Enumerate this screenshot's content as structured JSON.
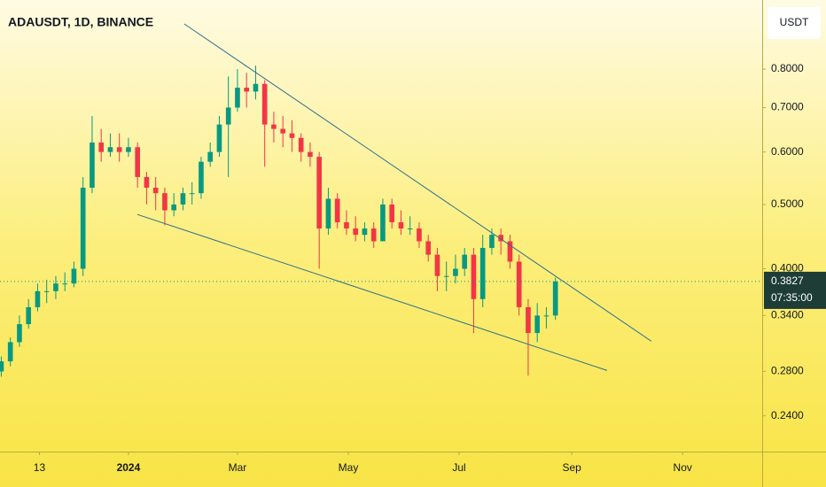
{
  "chart_data": {
    "type": "candlestick",
    "title": "ADAUSDT, 1D, BINANCE",
    "currency_button": "USDT",
    "log_scale": true,
    "xlim": [
      -70.7,
      348.8
    ],
    "xticks": [
      {
        "value": -49,
        "label": "13"
      },
      {
        "value": 0,
        "label": "2024"
      },
      {
        "value": 60,
        "label": "Mar"
      },
      {
        "value": 121,
        "label": "May"
      },
      {
        "value": 182,
        "label": "Jul"
      },
      {
        "value": 244,
        "label": "Sep"
      },
      {
        "value": 305,
        "label": "Nov"
      }
    ],
    "ylim": [
      0.212,
      1.017
    ],
    "yticks": [
      {
        "value": 0.24,
        "label": "0.2400"
      },
      {
        "value": 0.28,
        "label": "0.2800"
      },
      {
        "value": 0.34,
        "label": "0.3400"
      },
      {
        "value": 0.4,
        "label": "0.4000"
      },
      {
        "value": 0.5,
        "label": "0.5000"
      },
      {
        "value": 0.6,
        "label": "0.6000"
      },
      {
        "value": 0.7,
        "label": "0.7000"
      },
      {
        "value": 0.8,
        "label": "0.8000"
      }
    ],
    "up_color": "#089981",
    "down_color": "#f23645",
    "x": [
      -70,
      -65,
      -60,
      -55,
      -50,
      -45,
      -40,
      -35,
      -30,
      -25,
      -20,
      -15,
      -10,
      -5,
      0,
      5,
      10,
      15,
      20,
      25,
      30,
      35,
      40,
      45,
      50,
      55,
      60,
      65,
      70,
      75,
      80,
      85,
      90,
      95,
      100,
      105,
      110,
      115,
      120,
      125,
      130,
      135,
      140,
      145,
      150,
      155,
      160,
      165,
      170,
      175,
      180,
      185,
      190,
      195,
      200,
      205,
      210,
      215,
      220,
      225,
      230,
      235
    ],
    "open": [
      0.28,
      0.29,
      0.31,
      0.33,
      0.35,
      0.37,
      0.37,
      0.38,
      0.38,
      0.4,
      0.53,
      0.62,
      0.6,
      0.61,
      0.6,
      0.61,
      0.55,
      0.53,
      0.52,
      0.49,
      0.5,
      0.52,
      0.52,
      0.58,
      0.6,
      0.66,
      0.7,
      0.75,
      0.74,
      0.76,
      0.66,
      0.65,
      0.64,
      0.63,
      0.6,
      0.59,
      0.46,
      0.51,
      0.47,
      0.46,
      0.45,
      0.46,
      0.44,
      0.5,
      0.47,
      0.46,
      0.46,
      0.44,
      0.42,
      0.39,
      0.39,
      0.4,
      0.42,
      0.36,
      0.43,
      0.45,
      0.44,
      0.41,
      0.35,
      0.32,
      0.34,
      0.34
    ],
    "high": [
      0.295,
      0.315,
      0.34,
      0.36,
      0.38,
      0.385,
      0.39,
      0.395,
      0.41,
      0.55,
      0.68,
      0.65,
      0.64,
      0.64,
      0.63,
      0.62,
      0.56,
      0.55,
      0.53,
      0.52,
      0.53,
      0.54,
      0.59,
      0.62,
      0.68,
      0.78,
      0.8,
      0.79,
      0.81,
      0.77,
      0.69,
      0.68,
      0.67,
      0.64,
      0.62,
      0.6,
      0.53,
      0.52,
      0.49,
      0.48,
      0.47,
      0.47,
      0.51,
      0.51,
      0.49,
      0.48,
      0.47,
      0.45,
      0.43,
      0.41,
      0.42,
      0.43,
      0.43,
      0.45,
      0.46,
      0.46,
      0.45,
      0.42,
      0.36,
      0.355,
      0.35,
      0.388
    ],
    "low": [
      0.275,
      0.285,
      0.305,
      0.325,
      0.345,
      0.355,
      0.36,
      0.37,
      0.375,
      0.39,
      0.52,
      0.58,
      0.59,
      0.58,
      0.59,
      0.53,
      0.5,
      0.49,
      0.465,
      0.48,
      0.49,
      0.5,
      0.51,
      0.57,
      0.59,
      0.55,
      0.69,
      0.7,
      0.72,
      0.57,
      0.62,
      0.61,
      0.6,
      0.58,
      0.57,
      0.4,
      0.45,
      0.46,
      0.45,
      0.44,
      0.44,
      0.43,
      0.44,
      0.46,
      0.45,
      0.45,
      0.43,
      0.41,
      0.37,
      0.37,
      0.38,
      0.39,
      0.32,
      0.35,
      0.42,
      0.42,
      0.4,
      0.34,
      0.276,
      0.31,
      0.325,
      0.335
    ],
    "close": [
      0.29,
      0.31,
      0.33,
      0.35,
      0.37,
      0.37,
      0.38,
      0.38,
      0.4,
      0.53,
      0.62,
      0.6,
      0.61,
      0.6,
      0.61,
      0.55,
      0.53,
      0.52,
      0.49,
      0.5,
      0.52,
      0.52,
      0.58,
      0.6,
      0.66,
      0.7,
      0.75,
      0.74,
      0.76,
      0.66,
      0.65,
      0.64,
      0.63,
      0.6,
      0.59,
      0.46,
      0.51,
      0.47,
      0.46,
      0.45,
      0.46,
      0.44,
      0.5,
      0.47,
      0.46,
      0.46,
      0.44,
      0.42,
      0.39,
      0.39,
      0.4,
      0.42,
      0.36,
      0.43,
      0.45,
      0.44,
      0.41,
      0.35,
      0.32,
      0.34,
      0.34,
      0.3827
    ],
    "last_price": 0.3827,
    "countdown": "07:35:00",
    "trendlines": [
      {
        "x": [
          30.7,
          287.8
        ],
        "y": [
          0.936,
          0.311
        ]
      },
      {
        "x": [
          4.9,
          263.4
        ],
        "y": [
          0.483,
          0.281
        ]
      }
    ]
  }
}
